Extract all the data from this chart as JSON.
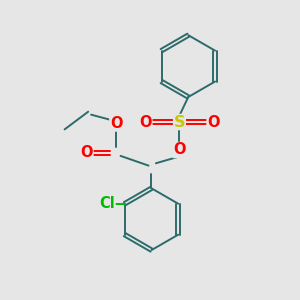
{
  "bg_color": "#e6e6e6",
  "bond_color": "#2d6b6b",
  "bond_width": 1.4,
  "S_color": "#c8c800",
  "O_color": "#ff0000",
  "Cl_color": "#00bb00",
  "font_size": 10.5,
  "figsize": [
    3.0,
    3.0
  ],
  "dpi": 100,
  "xlim": [
    0,
    10
  ],
  "ylim": [
    0,
    10
  ]
}
